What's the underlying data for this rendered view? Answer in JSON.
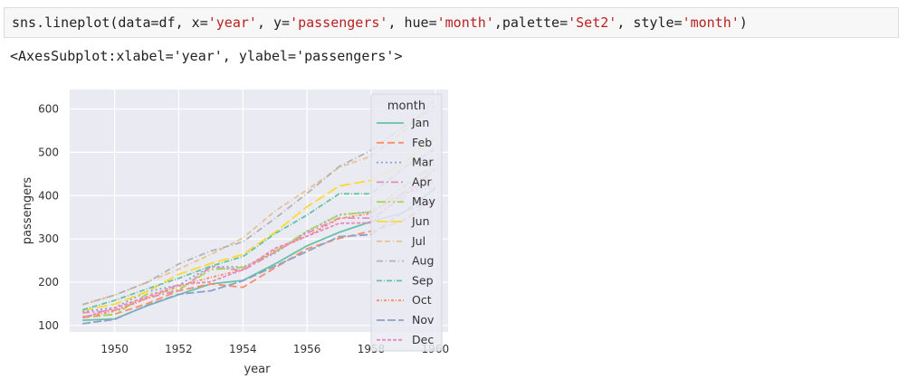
{
  "code_cell": {
    "tokens": [
      {
        "t": "sns.lineplot(data=df, x=",
        "c": "plain"
      },
      {
        "t": "'year'",
        "c": "str"
      },
      {
        "t": ", y=",
        "c": "plain"
      },
      {
        "t": "'passengers'",
        "c": "str"
      },
      {
        "t": ", hue=",
        "c": "plain"
      },
      {
        "t": "'month'",
        "c": "str"
      },
      {
        "t": ",palette=",
        "c": "plain"
      },
      {
        "t": "'Set2'",
        "c": "str"
      },
      {
        "t": ", style=",
        "c": "plain"
      },
      {
        "t": "'month'",
        "c": "str"
      },
      {
        "t": ")",
        "c": "plain"
      }
    ]
  },
  "output": {
    "text": "<AxesSubplot:xlabel='year', ylabel='passengers'>"
  },
  "chart_data": {
    "type": "line",
    "xlabel": "year",
    "ylabel": "passengers",
    "xlim": [
      1948.6,
      1960.4
    ],
    "ylim": [
      85,
      645
    ],
    "xticks": [
      1950,
      1952,
      1954,
      1956,
      1958,
      1960
    ],
    "yticks": [
      100,
      200,
      300,
      400,
      500,
      600
    ],
    "grid": true,
    "legend": {
      "title": "month",
      "placement": "upper-right"
    },
    "background": "#eaeaf2",
    "x": [
      1949,
      1950,
      1951,
      1952,
      1953,
      1954,
      1955,
      1956,
      1957,
      1958,
      1959,
      1960
    ],
    "series": [
      {
        "name": "Jan",
        "color": "#66c2a5",
        "dash": "",
        "values": [
          112,
          115,
          145,
          171,
          196,
          204,
          242,
          284,
          315,
          340,
          360,
          417
        ]
      },
      {
        "name": "Feb",
        "color": "#fc8d62",
        "dash": "8,4",
        "values": [
          118,
          126,
          150,
          180,
          196,
          188,
          233,
          277,
          301,
          318,
          342,
          391
        ]
      },
      {
        "name": "Mar",
        "color": "#8da0cb",
        "dash": "2,3",
        "values": [
          132,
          141,
          178,
          193,
          236,
          235,
          267,
          317,
          356,
          362,
          406,
          419
        ]
      },
      {
        "name": "Apr",
        "color": "#e78ac3",
        "dash": "8,3,2,3",
        "values": [
          129,
          135,
          163,
          181,
          235,
          227,
          269,
          313,
          348,
          348,
          396,
          461
        ]
      },
      {
        "name": "May",
        "color": "#a6d854",
        "dash": "10,3,2,3,2,3",
        "values": [
          121,
          125,
          172,
          183,
          229,
          234,
          270,
          318,
          355,
          363,
          420,
          472
        ]
      },
      {
        "name": "Jun",
        "color": "#ffd92f",
        "dash": "12,4",
        "values": [
          135,
          149,
          178,
          218,
          243,
          264,
          315,
          374,
          422,
          435,
          472,
          535
        ]
      },
      {
        "name": "Jul",
        "color": "#e5c494",
        "dash": "6,3,6,3,1,3",
        "values": [
          148,
          170,
          199,
          230,
          264,
          302,
          364,
          413,
          465,
          491,
          548,
          622
        ]
      },
      {
        "name": "Aug",
        "color": "#b3b3b3",
        "dash": "7,3,1,3",
        "values": [
          148,
          170,
          199,
          242,
          272,
          293,
          347,
          405,
          467,
          505,
          559,
          606
        ]
      },
      {
        "name": "Sep",
        "color": "#66c2a5",
        "dash": "6,2,1,2",
        "values": [
          136,
          158,
          184,
          209,
          237,
          259,
          312,
          355,
          404,
          404,
          463,
          508
        ]
      },
      {
        "name": "Oct",
        "color": "#fc8d62",
        "dash": "3,2,1,2",
        "values": [
          119,
          133,
          162,
          191,
          211,
          229,
          274,
          306,
          347,
          359,
          407,
          461
        ]
      },
      {
        "name": "Nov",
        "color": "#8da0cb",
        "dash": "9,3",
        "values": [
          104,
          114,
          146,
          172,
          180,
          203,
          237,
          271,
          305,
          310,
          362,
          390
        ]
      },
      {
        "name": "Dec",
        "color": "#e78ac3",
        "dash": "4,2",
        "values": [
          118,
          140,
          166,
          194,
          201,
          229,
          278,
          306,
          336,
          337,
          405,
          432
        ]
      }
    ]
  }
}
